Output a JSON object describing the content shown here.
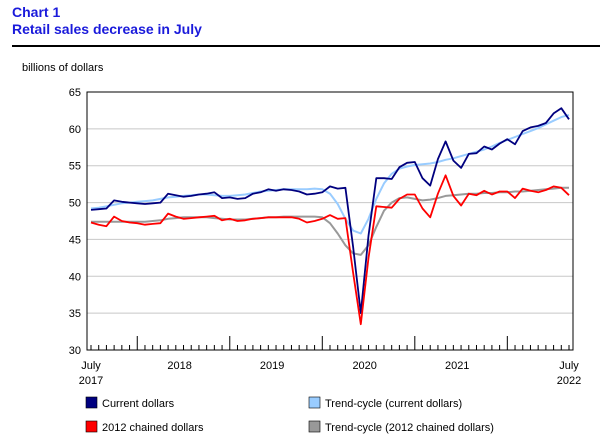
{
  "header": {
    "chart_label": "Chart 1",
    "chart_title": "Retail sales decrease in July"
  },
  "chart_data": {
    "type": "line",
    "title": "Retail sales decrease in July",
    "ylabel": "billions of dollars",
    "xlabel": "",
    "ylim": [
      30,
      65
    ],
    "yticks": [
      30,
      35,
      40,
      45,
      50,
      55,
      60,
      65
    ],
    "grid": "horizontal",
    "x_tick_labels": [
      {
        "label": "July",
        "sub": "2017"
      },
      {
        "label": "2018",
        "sub": ""
      },
      {
        "label": "2019",
        "sub": ""
      },
      {
        "label": "2020",
        "sub": ""
      },
      {
        "label": "2021",
        "sub": ""
      },
      {
        "label": "July",
        "sub": "2022"
      }
    ],
    "x_start": "2017-07",
    "x_end": "2022-07",
    "series": [
      {
        "name": "Current dollars",
        "color": "#00007f",
        "values": [
          49.0,
          49.1,
          49.2,
          50.3,
          50.1,
          50.0,
          49.9,
          49.8,
          49.9,
          50.0,
          51.2,
          51.0,
          50.8,
          50.9,
          51.1,
          51.2,
          51.4,
          50.6,
          50.7,
          50.5,
          50.6,
          51.2,
          51.4,
          51.8,
          51.6,
          51.8,
          51.7,
          51.5,
          51.1,
          51.2,
          51.4,
          52.2,
          51.9,
          52.0,
          44.0,
          35.0,
          45.5,
          53.3,
          53.3,
          53.2,
          54.8,
          55.4,
          55.5,
          53.3,
          52.3,
          55.9,
          58.3,
          55.7,
          54.7,
          56.6,
          56.7,
          57.6,
          57.2,
          58.0,
          58.6,
          57.9,
          59.7,
          60.2,
          60.4,
          60.8,
          62.1,
          62.8,
          61.3
        ]
      },
      {
        "name": "Trend-cycle (current dollars)",
        "color": "#99ccff",
        "values": [
          49.2,
          49.3,
          49.5,
          49.7,
          49.9,
          50.0,
          50.1,
          50.2,
          50.3,
          50.5,
          50.7,
          50.8,
          50.9,
          51.0,
          51.1,
          51.1,
          51.0,
          50.9,
          50.9,
          51.0,
          51.1,
          51.3,
          51.5,
          51.6,
          51.7,
          51.8,
          51.8,
          51.8,
          51.8,
          51.9,
          51.8,
          51.2,
          49.8,
          47.8,
          46.2,
          45.8,
          47.8,
          50.5,
          52.6,
          53.9,
          54.6,
          54.9,
          55.1,
          55.2,
          55.3,
          55.5,
          55.8,
          56.0,
          56.3,
          56.6,
          56.9,
          57.2,
          57.6,
          58.1,
          58.5,
          58.9,
          59.3,
          59.7,
          60.1,
          60.6,
          61.1,
          61.6,
          61.9
        ]
      },
      {
        "name": "2012 chained dollars",
        "color": "#ff0000",
        "values": [
          47.3,
          47.0,
          46.8,
          48.1,
          47.5,
          47.3,
          47.2,
          47.0,
          47.1,
          47.2,
          48.5,
          48.1,
          47.8,
          47.9,
          48.0,
          48.1,
          48.2,
          47.6,
          47.8,
          47.5,
          47.6,
          47.8,
          47.9,
          48.0,
          48.0,
          48.0,
          48.0,
          47.8,
          47.3,
          47.5,
          47.8,
          48.3,
          47.8,
          47.9,
          40.5,
          33.5,
          42.5,
          49.5,
          49.4,
          49.3,
          50.5,
          51.1,
          51.1,
          49.2,
          48.0,
          51.2,
          53.7,
          50.9,
          49.6,
          51.2,
          51.0,
          51.6,
          51.1,
          51.5,
          51.5,
          50.6,
          51.9,
          51.6,
          51.4,
          51.7,
          52.2,
          52.0,
          51.0
        ]
      },
      {
        "name": "Trend-cycle (2012 chained dollars)",
        "color": "#999999",
        "values": [
          47.4,
          47.4,
          47.4,
          47.4,
          47.4,
          47.4,
          47.4,
          47.4,
          47.5,
          47.6,
          47.8,
          47.9,
          48.0,
          48.0,
          48.0,
          48.0,
          47.9,
          47.8,
          47.7,
          47.7,
          47.7,
          47.8,
          47.9,
          48.0,
          48.0,
          48.1,
          48.1,
          48.1,
          48.1,
          48.1,
          48.0,
          47.2,
          45.8,
          44.2,
          43.1,
          42.9,
          44.2,
          46.7,
          48.9,
          50.0,
          50.6,
          50.7,
          50.5,
          50.3,
          50.4,
          50.6,
          50.9,
          51.0,
          51.1,
          51.2,
          51.2,
          51.3,
          51.3,
          51.4,
          51.4,
          51.5,
          51.5,
          51.6,
          51.7,
          51.8,
          51.9,
          52.0,
          52.0
        ]
      }
    ]
  }
}
